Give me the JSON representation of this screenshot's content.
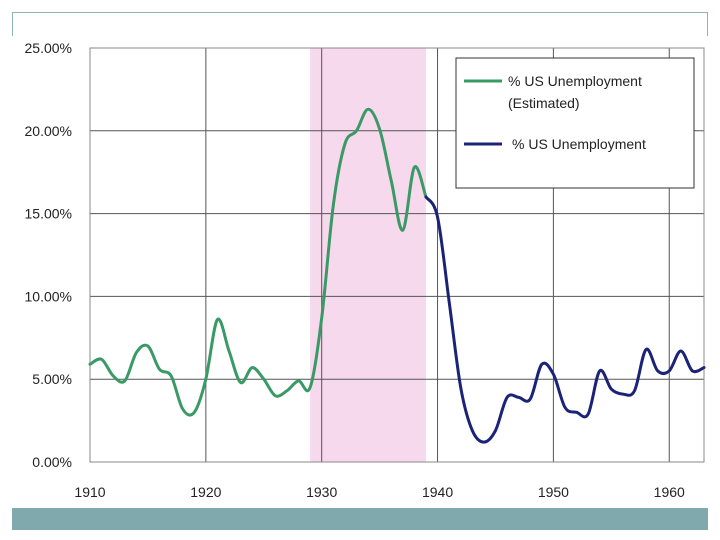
{
  "colors": {
    "estimated": "#3a9a66",
    "actual": "#1a2378",
    "shade": "#f7d9ee",
    "bottom_bar": "#7fa9ad",
    "frame": "#8fb3b3"
  },
  "chart_data": {
    "type": "line",
    "title": "",
    "xlabel": "",
    "ylabel": "",
    "xlim": [
      1910,
      1963
    ],
    "ylim": [
      0,
      25
    ],
    "x_ticks": [
      1910,
      1920,
      1930,
      1940,
      1950,
      1960
    ],
    "x_tick_labels": [
      "1910",
      "1920",
      "1930",
      "1940",
      "1950",
      "1960"
    ],
    "y_ticks": [
      0,
      5,
      10,
      15,
      20,
      25
    ],
    "y_tick_labels": [
      "0.00%",
      "5.00%",
      "10.00%",
      "15.00%",
      "20.00%",
      "25.00%"
    ],
    "grid": true,
    "legend_position": "top-right",
    "shaded_region": {
      "x_start": 1929,
      "x_end": 1939
    },
    "series": [
      {
        "name": "% US Unemployment (Estimated)",
        "legend_lines": [
          "% US Unemployment",
          "(Estimated)"
        ],
        "color_key": "estimated",
        "points": [
          [
            1910,
            5.9
          ],
          [
            1911,
            6.2
          ],
          [
            1912,
            5.2
          ],
          [
            1913,
            4.9
          ],
          [
            1914,
            6.6
          ],
          [
            1915,
            7.0
          ],
          [
            1916,
            5.6
          ],
          [
            1917,
            5.2
          ],
          [
            1918,
            3.2
          ],
          [
            1919,
            3.0
          ],
          [
            1920,
            5.0
          ],
          [
            1921,
            8.6
          ],
          [
            1922,
            6.7
          ],
          [
            1923,
            4.8
          ],
          [
            1924,
            5.7
          ],
          [
            1925,
            5.0
          ],
          [
            1926,
            4.0
          ],
          [
            1927,
            4.3
          ],
          [
            1928,
            4.9
          ],
          [
            1929,
            4.5
          ],
          [
            1930,
            8.7
          ],
          [
            1931,
            15.5
          ],
          [
            1932,
            19.2
          ],
          [
            1933,
            20.0
          ],
          [
            1934,
            21.3
          ],
          [
            1935,
            20.1
          ],
          [
            1936,
            17.0
          ],
          [
            1937,
            14.0
          ],
          [
            1938,
            17.8
          ],
          [
            1939,
            16.0
          ]
        ]
      },
      {
        "name": "% US Unemployment",
        "legend_lines": [
          "% US Unemployment"
        ],
        "color_key": "actual",
        "points": [
          [
            1939,
            16.0
          ],
          [
            1940,
            14.8
          ],
          [
            1941,
            9.7
          ],
          [
            1942,
            4.5
          ],
          [
            1943,
            1.9
          ],
          [
            1944,
            1.2
          ],
          [
            1945,
            1.9
          ],
          [
            1946,
            3.9
          ],
          [
            1947,
            3.9
          ],
          [
            1948,
            3.8
          ],
          [
            1949,
            5.9
          ],
          [
            1950,
            5.3
          ],
          [
            1951,
            3.3
          ],
          [
            1952,
            3.0
          ],
          [
            1953,
            2.9
          ],
          [
            1954,
            5.5
          ],
          [
            1955,
            4.4
          ],
          [
            1956,
            4.1
          ],
          [
            1957,
            4.3
          ],
          [
            1958,
            6.8
          ],
          [
            1959,
            5.5
          ],
          [
            1960,
            5.5
          ],
          [
            1961,
            6.7
          ],
          [
            1962,
            5.5
          ],
          [
            1963,
            5.7
          ]
        ]
      }
    ]
  }
}
